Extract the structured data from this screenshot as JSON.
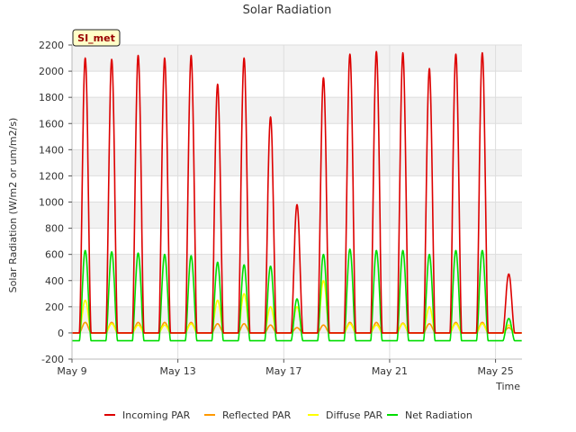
{
  "chart_data": {
    "type": "line",
    "title": "Solar Radiation",
    "xlabel": "Time",
    "ylabel": "Solar Radiation (W/m2 or um/m2/s)",
    "annotation": "SI_met",
    "x_range_days": [
      9,
      26
    ],
    "ylim": [
      -200,
      2200
    ],
    "y_ticks": [
      -200,
      0,
      200,
      400,
      600,
      800,
      1000,
      1200,
      1400,
      1600,
      1800,
      2000,
      2200
    ],
    "x_ticks": [
      {
        "day": 9,
        "label": "May 9"
      },
      {
        "day": 13,
        "label": "May 13"
      },
      {
        "day": 17,
        "label": "May 17"
      },
      {
        "day": 21,
        "label": "May 21"
      },
      {
        "day": 25,
        "label": "May 25"
      }
    ],
    "legend_position": "bottom",
    "series": [
      {
        "name": "Incoming PAR",
        "color": "#dd0000",
        "daily_peaks": [
          2100,
          2090,
          2120,
          2100,
          2120,
          1900,
          2100,
          1650,
          980,
          1950,
          2130,
          2150,
          2140,
          2020,
          2130,
          2140,
          450
        ]
      },
      {
        "name": "Reflected PAR",
        "color": "#ff9900",
        "daily_peaks": [
          80,
          80,
          80,
          80,
          80,
          70,
          70,
          60,
          40,
          60,
          80,
          80,
          75,
          70,
          80,
          80,
          40
        ]
      },
      {
        "name": "Diffuse PAR",
        "color": "#ffff00",
        "daily_peaks": [
          250,
          70,
          60,
          60,
          70,
          250,
          300,
          200,
          200,
          400,
          70,
          60,
          70,
          200,
          70,
          70,
          60
        ]
      },
      {
        "name": "Net Radiation",
        "color": "#00dd00",
        "night_value": -60,
        "daily_peaks": [
          630,
          620,
          610,
          600,
          590,
          540,
          520,
          510,
          260,
          600,
          640,
          630,
          630,
          600,
          630,
          630,
          110
        ]
      }
    ]
  }
}
